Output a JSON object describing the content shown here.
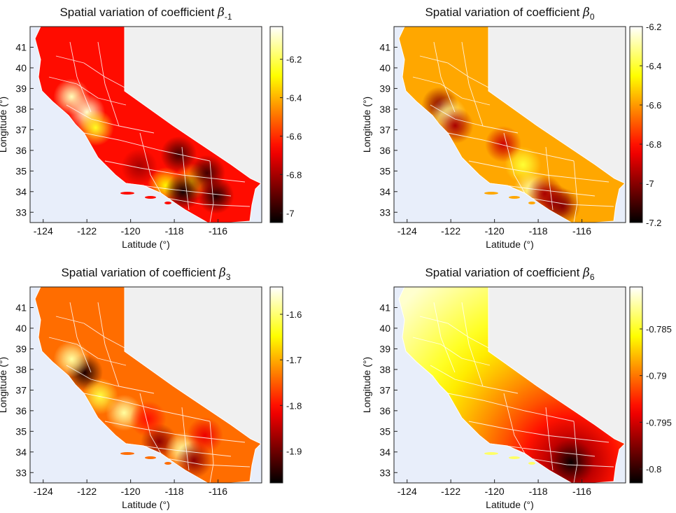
{
  "chart_data": [
    {
      "type": "heatmap",
      "title": "Spatial variation of coefficient β-1",
      "title_parts": {
        "prefix": "Spatial variation of coefficient ",
        "symbol": "β",
        "subscript": "-1"
      },
      "xlabel": "Latitude (°)",
      "ylabel": "Longitude (°)",
      "x_ticks": [
        "-124",
        "-122",
        "-120",
        "-118",
        "-116"
      ],
      "y_ticks": [
        "33",
        "34",
        "35",
        "36",
        "37",
        "38",
        "39",
        "40",
        "41"
      ],
      "xlim": [
        -124.6,
        -114.0
      ],
      "ylim": [
        32.5,
        42.0
      ],
      "colorbar": {
        "ticks": [
          "-6.2",
          "-6.4",
          "-6.6",
          "-6.8",
          "-7"
        ],
        "range": [
          -7.05,
          -6.03
        ],
        "colormap": "hot"
      },
      "base_value": -6.65,
      "hotspots": [
        {
          "lon": -122.7,
          "lat": 38.6,
          "value": -6.1
        },
        {
          "lon": -122.0,
          "lat": 37.85,
          "value": -6.08
        },
        {
          "lon": -121.6,
          "lat": 37.1,
          "value": -6.25
        },
        {
          "lon": -118.4,
          "lat": 34.3,
          "value": -6.3
        },
        {
          "lon": -117.2,
          "lat": 34.5,
          "value": -6.4
        },
        {
          "lon": -117.6,
          "lat": 34.0,
          "value": -7.02
        },
        {
          "lon": -116.1,
          "lat": 33.8,
          "value": -7.0
        },
        {
          "lon": -116.5,
          "lat": 34.9,
          "value": -6.95
        },
        {
          "lon": -117.8,
          "lat": 35.8,
          "value": -6.95
        },
        {
          "lon": -119.6,
          "lat": 35.2,
          "value": -6.8
        }
      ]
    },
    {
      "type": "heatmap",
      "title": "Spatial variation of coefficient β0",
      "title_parts": {
        "prefix": "Spatial variation of coefficient ",
        "symbol": "β",
        "subscript": "0"
      },
      "xlabel": "Latitude (°)",
      "ylabel": "Longitude (°)",
      "x_ticks": [
        "-124",
        "-122",
        "-120",
        "-118",
        "-116"
      ],
      "y_ticks": [
        "33",
        "34",
        "35",
        "36",
        "37",
        "38",
        "39",
        "40",
        "41"
      ],
      "xlim": [
        -124.6,
        -114.0
      ],
      "ylim": [
        32.5,
        42.0
      ],
      "colorbar": {
        "ticks": [
          "-6.2",
          "-6.4",
          "-6.6",
          "-6.8",
          "-7",
          "-7.2"
        ],
        "range": [
          -7.2,
          -6.2
        ],
        "colormap": "hot"
      },
      "base_value": -6.58,
      "hotspots": [
        {
          "lon": -122.5,
          "lat": 38.2,
          "value": -7.0
        },
        {
          "lon": -122.1,
          "lat": 37.7,
          "value": -6.3
        },
        {
          "lon": -121.8,
          "lat": 37.2,
          "value": -6.95
        },
        {
          "lon": -118.3,
          "lat": 34.1,
          "value": -6.3
        },
        {
          "lon": -117.7,
          "lat": 33.9,
          "value": -6.95
        },
        {
          "lon": -117.3,
          "lat": 33.5,
          "value": -6.95
        },
        {
          "lon": -116.9,
          "lat": 33.3,
          "value": -7.0
        },
        {
          "lon": -119.6,
          "lat": 36.3,
          "value": -6.9
        },
        {
          "lon": -118.7,
          "lat": 35.3,
          "value": -6.4
        }
      ]
    },
    {
      "type": "heatmap",
      "title": "Spatial variation of coefficient β3",
      "title_parts": {
        "prefix": "Spatial variation of coefficient ",
        "symbol": "β",
        "subscript": "3"
      },
      "xlabel": "Latitude (°)",
      "ylabel": "Longitude (°)",
      "x_ticks": [
        "-124",
        "-122",
        "-120",
        "-118",
        "-116"
      ],
      "y_ticks": [
        "33",
        "34",
        "35",
        "36",
        "37",
        "38",
        "39",
        "40",
        "41"
      ],
      "xlim": [
        -124.6,
        -114.0
      ],
      "ylim": [
        32.5,
        42.0
      ],
      "colorbar": {
        "ticks": [
          "-1.6",
          "-1.7",
          "-1.8",
          "-1.9"
        ],
        "range": [
          -1.97,
          -1.54
        ],
        "colormap": "hot"
      },
      "base_value": -1.74,
      "hotspots": [
        {
          "lon": -122.1,
          "lat": 37.85,
          "value": -1.95
        },
        {
          "lon": -122.7,
          "lat": 38.5,
          "value": -1.58
        },
        {
          "lon": -120.3,
          "lat": 35.9,
          "value": -1.58
        },
        {
          "lon": -121.4,
          "lat": 36.7,
          "value": -1.62
        },
        {
          "lon": -118.7,
          "lat": 34.5,
          "value": -1.88
        },
        {
          "lon": -117.6,
          "lat": 34.1,
          "value": -1.58
        },
        {
          "lon": -117.1,
          "lat": 33.6,
          "value": -1.88
        },
        {
          "lon": -116.6,
          "lat": 34.8,
          "value": -1.82
        },
        {
          "lon": -119.2,
          "lat": 35.6,
          "value": -1.8
        }
      ]
    },
    {
      "type": "heatmap",
      "title": "Spatial variation of coefficient β6",
      "title_parts": {
        "prefix": "Spatial variation of coefficient ",
        "symbol": "β",
        "subscript": "6"
      },
      "xlabel": "Latitude (°)",
      "ylabel": "Longitude (°)",
      "x_ticks": [
        "-124",
        "-122",
        "-120",
        "-118",
        "-116"
      ],
      "y_ticks": [
        "33",
        "34",
        "35",
        "36",
        "37",
        "38",
        "39",
        "40",
        "41"
      ],
      "xlim": [
        -124.6,
        -114.0
      ],
      "ylim": [
        32.5,
        42.0
      ],
      "colorbar": {
        "ticks": [
          "-0.785",
          "-0.79",
          "-0.795",
          "-0.8"
        ],
        "range": [
          -0.8015,
          -0.7805
        ],
        "colormap": "hot"
      },
      "gradient": {
        "lon": -116.5,
        "lat": 33.5,
        "value_at_center": -0.8012,
        "value_far": -0.7815
      },
      "hotspots": []
    }
  ]
}
